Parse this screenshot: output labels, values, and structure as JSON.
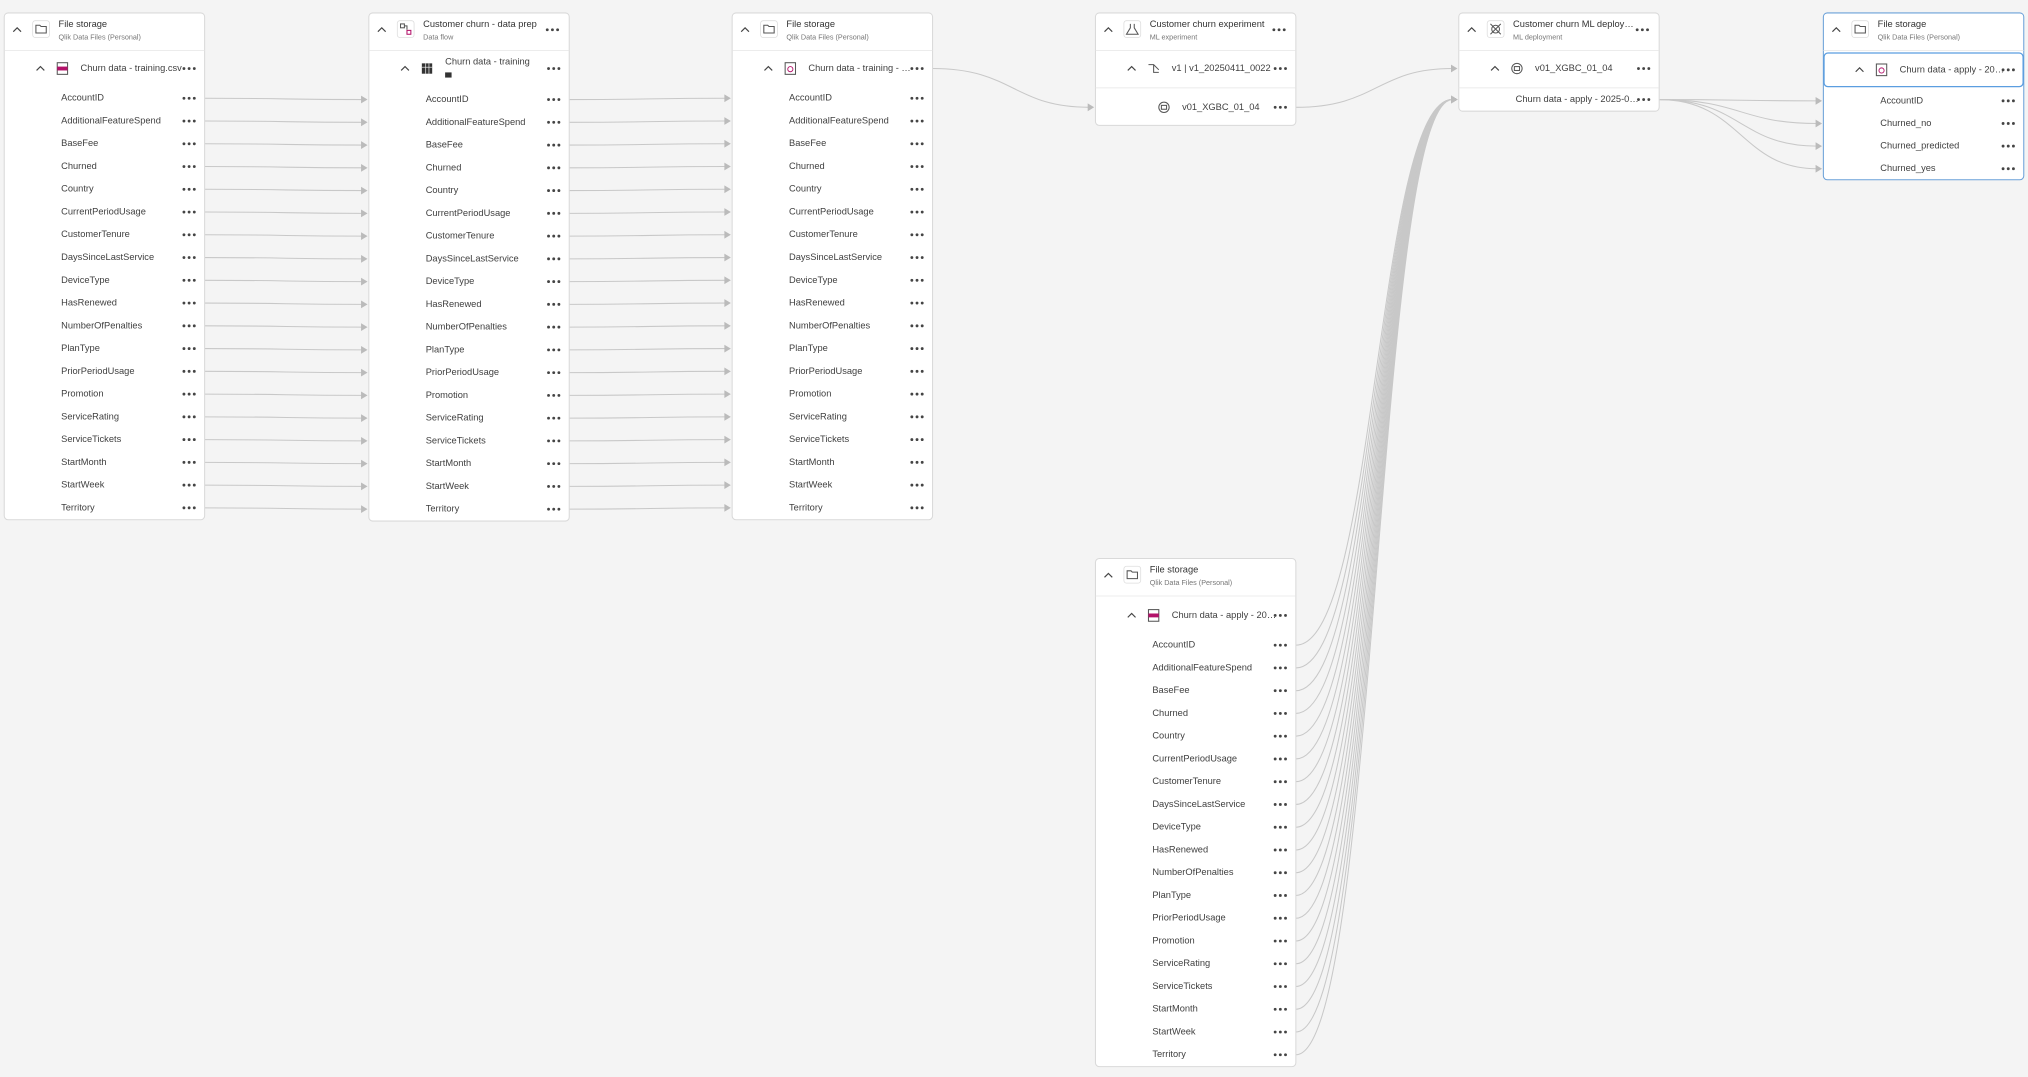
{
  "nodes": [
    {
      "title": "File storage",
      "subtitle": "Qlik Data Files (Personal)",
      "dataset": "Churn data - training.csv",
      "fields": [
        "AccountID",
        "AdditionalFeatureSpend",
        "BaseFee",
        "Churned",
        "Country",
        "CurrentPeriodUsage",
        "CustomerTenure",
        "DaysSinceLastService",
        "DeviceType",
        "HasRenewed",
        "NumberOfPenalties",
        "PlanType",
        "PriorPeriodUsage",
        "Promotion",
        "ServiceRating",
        "ServiceTickets",
        "StartMonth",
        "StartWeek",
        "Territory"
      ]
    },
    {
      "title": "Customer churn - data prep",
      "subtitle": "Data flow",
      "dataset": "Churn data - training",
      "fields": [
        "AccountID",
        "AdditionalFeatureSpend",
        "BaseFee",
        "Churned",
        "Country",
        "CurrentPeriodUsage",
        "CustomerTenure",
        "DaysSinceLastService",
        "DeviceType",
        "HasRenewed",
        "NumberOfPenalties",
        "PlanType",
        "PriorPeriodUsage",
        "Promotion",
        "ServiceRating",
        "ServiceTickets",
        "StartMonth",
        "StartWeek",
        "Territory"
      ]
    },
    {
      "title": "File storage",
      "subtitle": "Qlik Data Files (Personal)",
      "dataset": "Churn data - training - …",
      "fields": [
        "AccountID",
        "AdditionalFeatureSpend",
        "BaseFee",
        "Churned",
        "Country",
        "CurrentPeriodUsage",
        "CustomerTenure",
        "DaysSinceLastService",
        "DeviceType",
        "HasRenewed",
        "NumberOfPenalties",
        "PlanType",
        "PriorPeriodUsage",
        "Promotion",
        "ServiceRating",
        "ServiceTickets",
        "StartMonth",
        "StartWeek",
        "Territory"
      ]
    },
    {
      "title": "Customer churn experiment",
      "subtitle": "ML experiment",
      "dataset": "v1 | v1_20250411_0022",
      "fields": [
        "v01_XGBC_01_04"
      ]
    },
    {
      "title": "Customer churn ML deploy…",
      "subtitle": "ML deployment",
      "dataset": "v01_XGBC_01_04",
      "fields": [
        "Churn data - apply - 2025-0…"
      ]
    },
    {
      "title": "File storage",
      "subtitle": "Qlik Data Files (Personal)",
      "dataset": "Churn data - apply - 20…",
      "fields": [
        "AccountID",
        "Churned_no",
        "Churned_predicted",
        "Churned_yes"
      ]
    },
    {
      "title": "File storage",
      "subtitle": "Qlik Data Files (Personal)",
      "dataset": "Churn data - apply - 20…",
      "fields": [
        "AccountID",
        "AdditionalFeatureSpend",
        "BaseFee",
        "Churned",
        "Country",
        "CurrentPeriodUsage",
        "CustomerTenure",
        "DaysSinceLastService",
        "DeviceType",
        "HasRenewed",
        "NumberOfPenalties",
        "PlanType",
        "PriorPeriodUsage",
        "Promotion",
        "ServiceRating",
        "ServiceTickets",
        "StartMonth",
        "StartWeek",
        "Territory"
      ]
    }
  ]
}
